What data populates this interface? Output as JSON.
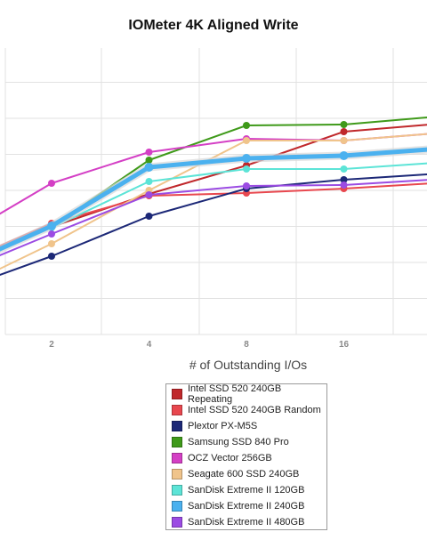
{
  "chart_data": {
    "type": "line",
    "title": "IOMeter 4K Aligned Write",
    "xlabel": "# of Outstanding I/Os",
    "ylabel": "",
    "categories": [
      "2",
      "4",
      "8",
      "16"
    ],
    "grid": true,
    "legend_position": "bottom-center",
    "series": [
      {
        "name": "Intel SSD 520 240GB Repeating",
        "color": "#c0282b",
        "values": [
          60.5,
          79,
          95,
          114
        ]
      },
      {
        "name": "Intel SSD 520 240GB Random",
        "color": "#e8474e",
        "values": [
          62.5,
          78,
          79.5,
          82
        ]
      },
      {
        "name": "Plextor PX-M5S",
        "color": "#1c2877",
        "values": [
          44,
          66.5,
          82,
          87
        ]
      },
      {
        "name": "Samsung SSD 840 Pro",
        "color": "#3f9a1a",
        "values": [
          60.5,
          98,
          117.5,
          118
        ]
      },
      {
        "name": "OCZ Vector 256GB",
        "color": "#d43fc5",
        "values": [
          85,
          102.5,
          110,
          109
        ]
      },
      {
        "name": "Seagate 600 SSD 240GB",
        "color": "#f0c48b",
        "values": [
          51,
          81,
          109,
          109
        ]
      },
      {
        "name": "SanDisk Extreme II 120GB",
        "color": "#5ce4d7",
        "values": [
          60,
          86,
          93,
          93
        ]
      },
      {
        "name": "SanDisk Extreme II 240GB",
        "color": "#4bb1ef",
        "values": [
          61,
          94,
          99,
          100.5
        ]
      },
      {
        "name": "SanDisk Extreme II 480GB",
        "color": "#9b4be3",
        "values": [
          56.5,
          78.5,
          83.5,
          84
        ]
      }
    ]
  }
}
